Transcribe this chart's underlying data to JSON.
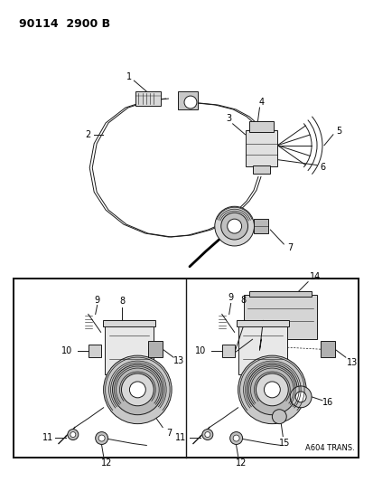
{
  "bg_color": "#ffffff",
  "line_color": "#1a1a1a",
  "fig_width": 4.14,
  "fig_height": 5.33,
  "dpi": 100,
  "header_text": "90114  2900 B",
  "footer_text": "A604 TRANS."
}
